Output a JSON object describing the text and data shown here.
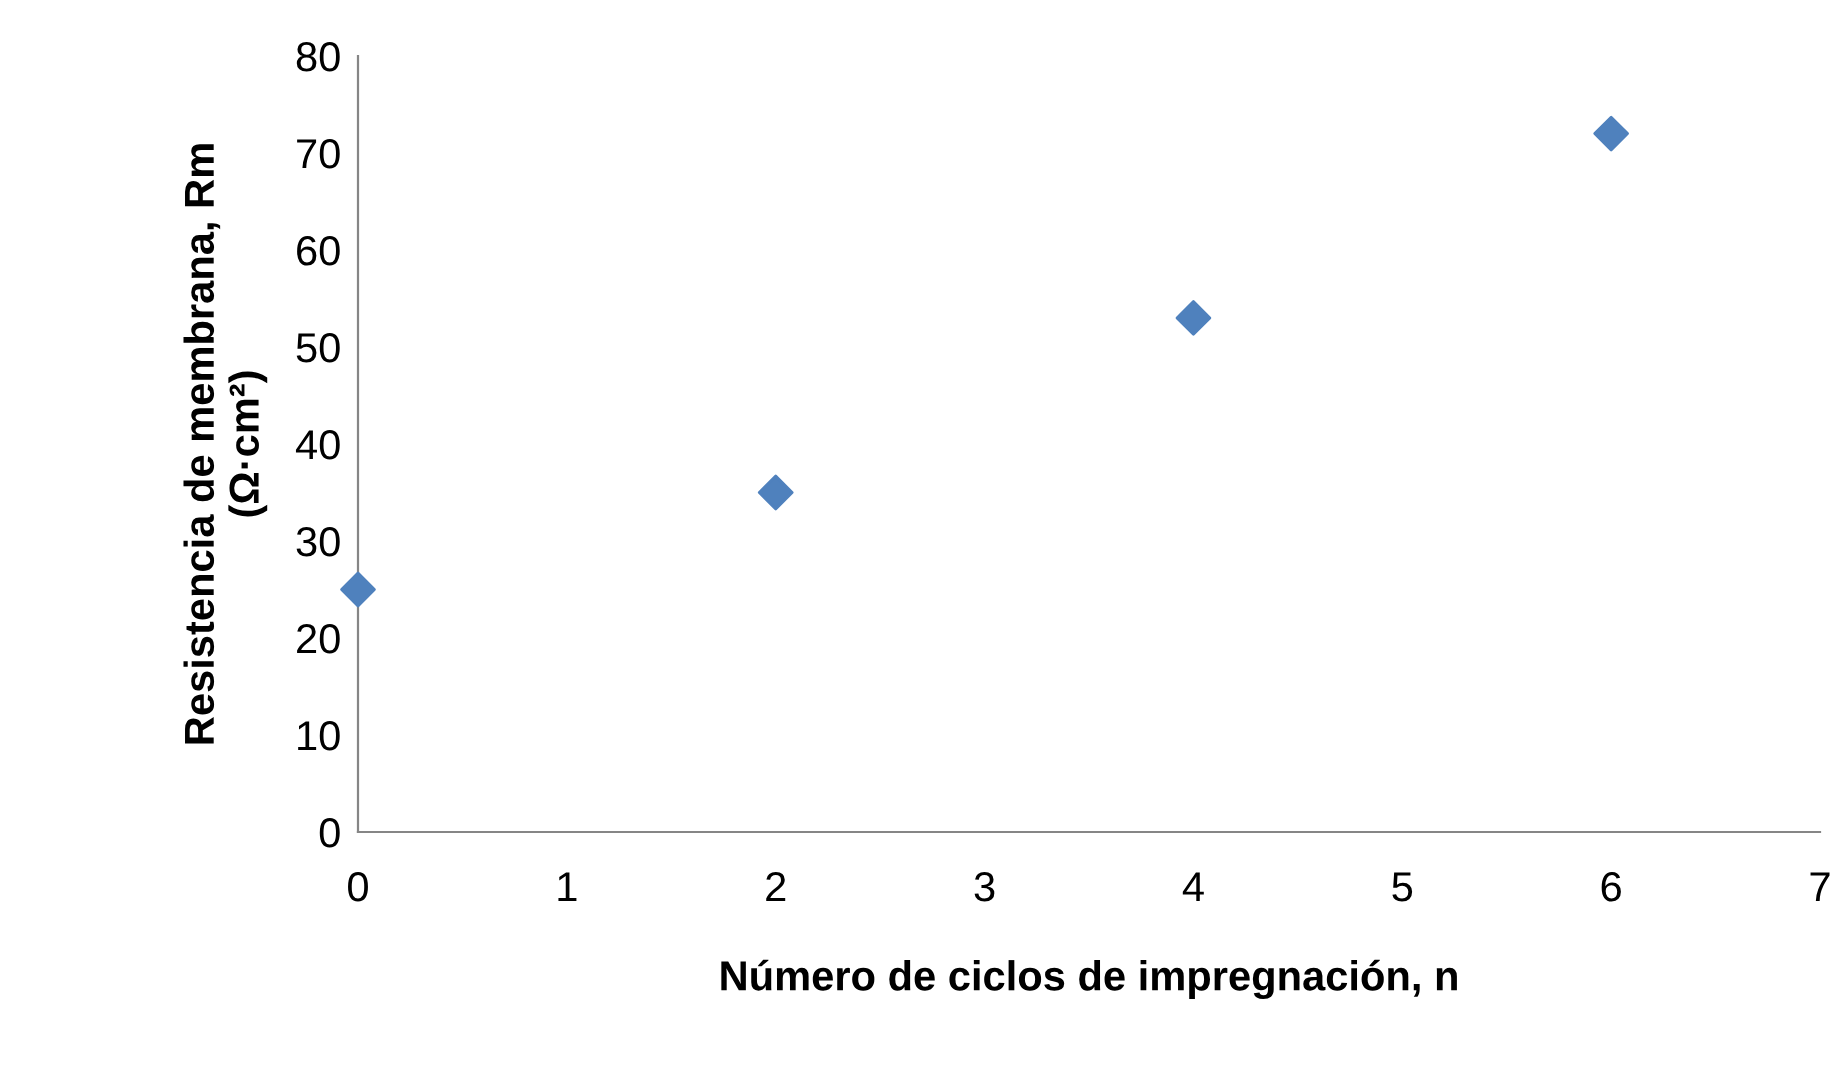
{
  "chart_data": {
    "type": "scatter",
    "xlabel": "Número de ciclos de impregnación, n",
    "ylabel": "Resistencia de membrana, Rm\n(Ω·cm²)",
    "x": [
      0,
      2,
      4,
      6
    ],
    "series": [
      {
        "color": "#4f81bd",
        "values": [
          25,
          35,
          53,
          72
        ]
      }
    ],
    "marker": "diamond",
    "xlim": [
      0,
      7
    ],
    "ylim": [
      0,
      80
    ],
    "xticks": [
      0,
      1,
      2,
      3,
      4,
      5,
      6,
      7
    ],
    "yticks": [
      0,
      10,
      20,
      30,
      40,
      50,
      60,
      70,
      80
    ],
    "grid": false,
    "legend": false
  }
}
